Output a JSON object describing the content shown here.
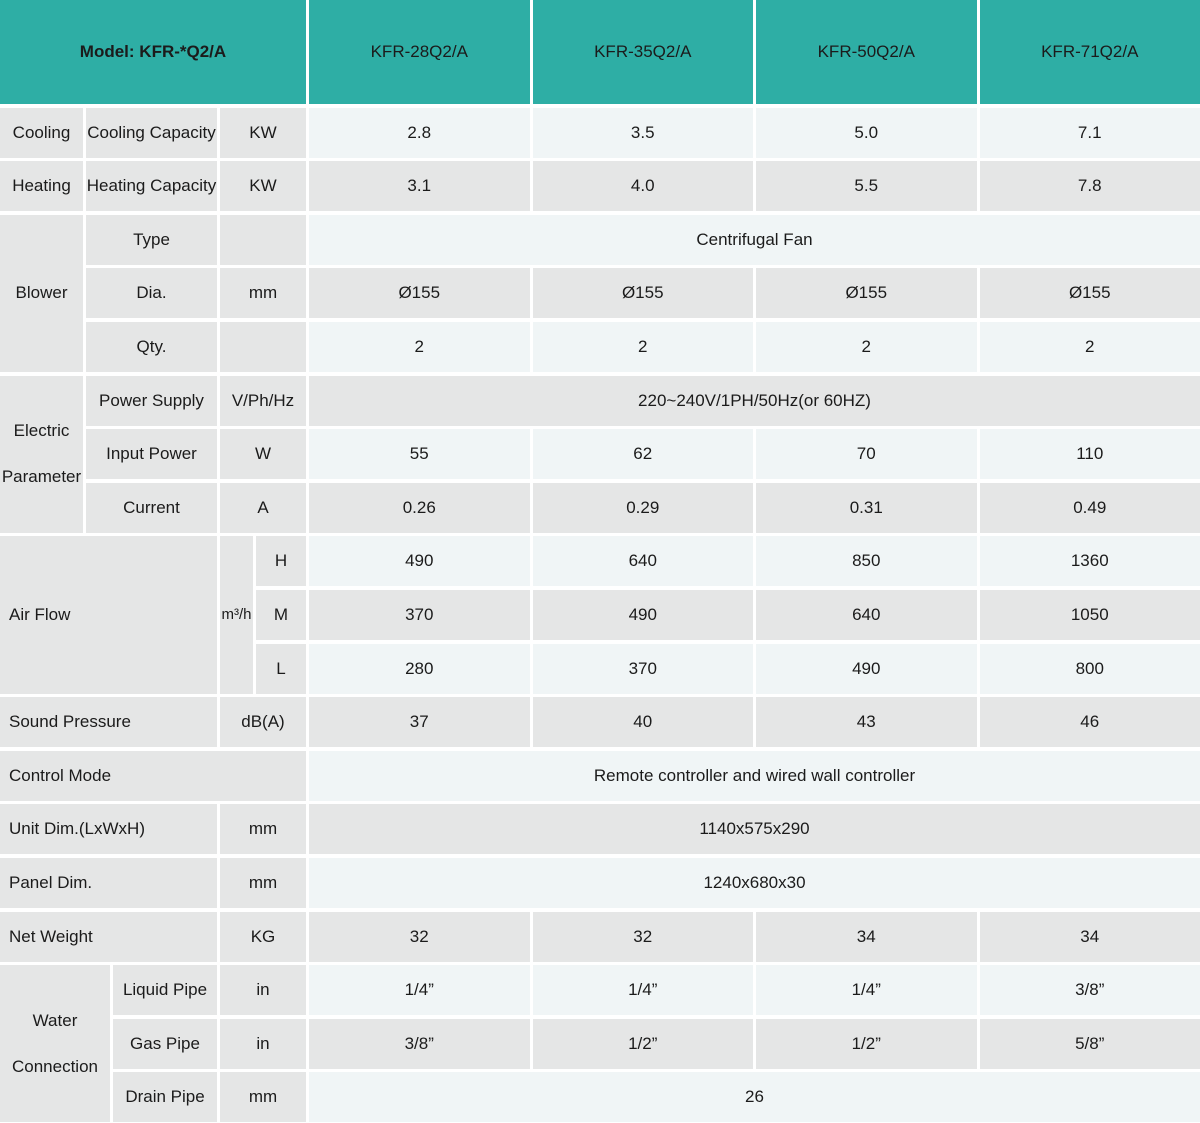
{
  "header": {
    "model": "Model: KFR-*Q2/A",
    "models": [
      "KFR-28Q2/A",
      "KFR-35Q2/A",
      "KFR-50Q2/A",
      "KFR-71Q2/A"
    ]
  },
  "sections": {
    "cooling": {
      "category": "Cooling",
      "label": "Cooling Capacity",
      "unit": "KW",
      "values": [
        "2.8",
        "3.5",
        "5.0",
        "7.1"
      ]
    },
    "heating": {
      "category": "Heating",
      "label": "Heating Capacity",
      "unit": "KW",
      "values": [
        "3.1",
        "4.0",
        "5.5",
        "7.8"
      ]
    },
    "blower": {
      "category": "Blower",
      "type_label": "Type",
      "type_value": "Centrifugal Fan",
      "dia_label": "Dia.",
      "dia_unit": "mm",
      "dia_values": [
        "Ø155",
        "Ø155",
        "Ø155",
        "Ø155"
      ],
      "qty_label": "Qty.",
      "qty_values": [
        "2",
        "2",
        "2",
        "2"
      ]
    },
    "electric": {
      "category": "Electric Parameter",
      "power_supply_label": "Power Supply",
      "power_supply_unit": "V/Ph/Hz",
      "power_supply_value": "220~240V/1PH/50Hz(or 60HZ)",
      "input_power_label": "Input Power",
      "input_power_unit": "W",
      "input_power_values": [
        "55",
        "62",
        "70",
        "110"
      ],
      "current_label": "Current",
      "current_unit": "A",
      "current_values": [
        "0.26",
        "0.29",
        "0.31",
        "0.49"
      ]
    },
    "air_flow": {
      "label": "Air Flow",
      "unit": "m³/h",
      "h_label": "H",
      "h_values": [
        "490",
        "640",
        "850",
        "1360"
      ],
      "m_label": "M",
      "m_values": [
        "370",
        "490",
        "640",
        "1050"
      ],
      "l_label": "L",
      "l_values": [
        "280",
        "370",
        "490",
        "800"
      ]
    },
    "sound": {
      "label": "Sound Pressure",
      "unit": "dB(A)",
      "values": [
        "37",
        "40",
        "43",
        "46"
      ]
    },
    "control": {
      "label": "Control Mode",
      "value": "Remote controller and wired wall controller"
    },
    "unit_dim": {
      "label": "Unit Dim.(LxWxH)",
      "unit": "mm",
      "value": "1140x575x290"
    },
    "panel_dim": {
      "label": "Panel Dim.",
      "unit": "mm",
      "value": "1240x680x30"
    },
    "net_weight": {
      "label": "Net Weight",
      "unit": "KG",
      "values": [
        "32",
        "32",
        "34",
        "34"
      ]
    },
    "water": {
      "category": "Water Connection",
      "liquid_label": "Liquid Pipe",
      "liquid_unit": "in",
      "liquid_values": [
        "1/4”",
        "1/4”",
        "1/4”",
        "3/8”"
      ],
      "gas_label": "Gas Pipe",
      "gas_unit": "in",
      "gas_values": [
        "3/8”",
        "1/2”",
        "1/2”",
        "5/8”"
      ],
      "drain_label": "Drain Pipe",
      "drain_unit": "mm",
      "drain_value": "26"
    }
  },
  "colors": {
    "accent_teal": "#2eaea5",
    "cell_gray": "#e5e6e6",
    "cell_light": "#f0f5f6",
    "text": "#1b1b1b"
  }
}
